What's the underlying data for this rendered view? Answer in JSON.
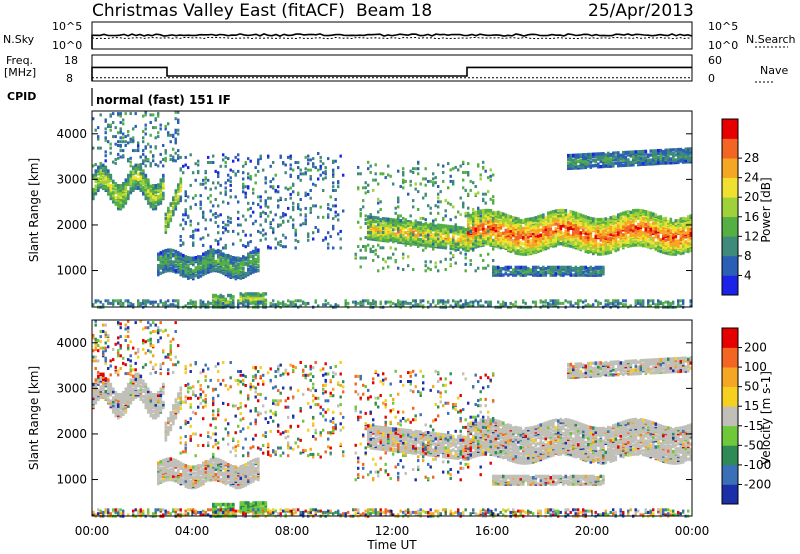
{
  "header": {
    "title": "Christmas Valley East (fitACF)",
    "beam": "Beam 18",
    "date": "25/Apr/2013"
  },
  "chart_data": [
    {
      "type": "line",
      "panel": "noise",
      "left_label": "N.Sky",
      "right_label": "N.Search",
      "left_ticks": [
        "10^5",
        "10^0"
      ],
      "right_ticks": [
        "10^5",
        "10^0"
      ]
    },
    {
      "type": "line",
      "panel": "frequency",
      "left_label_1": "Freq.",
      "left_label_2": "[MHz]",
      "right_label": "Nave",
      "left_ticks": [
        "18",
        "8"
      ],
      "right_ticks": [
        "60",
        "0"
      ],
      "freq_steps": [
        {
          "t0": 0.0,
          "t1": 3.0,
          "freq": 14.8
        },
        {
          "t0": 3.0,
          "t1": 15.0,
          "freq": 10.5
        },
        {
          "t0": 15.0,
          "t1": 24.0,
          "freq": 14.8
        }
      ],
      "nave_level": 8
    },
    {
      "type": "label",
      "panel": "cpid",
      "label": "CPID",
      "text": "normal (fast) 151 IF"
    },
    {
      "type": "heatmap",
      "panel": "power",
      "ylabel": "Slant Range [km]",
      "yticks": [
        1000,
        2000,
        3000,
        4000
      ],
      "ylim": [
        200,
        4500
      ],
      "xlim": [
        0,
        24
      ],
      "colorbar_label": "Power [dB]",
      "colorbar_ticks": [
        4,
        8,
        12,
        16,
        20,
        24,
        28
      ],
      "colorbar_colors": [
        "#1b24e6",
        "#2a5fb5",
        "#3f8a7a",
        "#55b043",
        "#9fd23a",
        "#f0e030",
        "#f5a623",
        "#f26522",
        "#e60000"
      ],
      "features": [
        {
          "kind": "band",
          "t0": 0.0,
          "t1": 2.9,
          "r_center": 2850,
          "width": 260,
          "osc_amp": 230,
          "osc_period": 1.4,
          "level": 0.55
        },
        {
          "kind": "band",
          "t0": 2.9,
          "t1": 3.6,
          "r_center": 2050,
          "width": 200,
          "slope": 900,
          "level": 0.62
        },
        {
          "kind": "band",
          "t0": 2.6,
          "t1": 6.6,
          "r_center": 1150,
          "width": 230,
          "osc_amp": 90,
          "osc_period": 1.8,
          "level": 0.35
        },
        {
          "kind": "band",
          "t0": 4.8,
          "t1": 5.6,
          "r_center": 350,
          "width": 140,
          "level": 0.55
        },
        {
          "kind": "band",
          "t0": 5.9,
          "t1": 6.9,
          "r_center": 400,
          "width": 100,
          "level": 0.6
        },
        {
          "kind": "band",
          "t0": 11.0,
          "t1": 15.0,
          "r_center": 1950,
          "width": 240,
          "slope": -260,
          "level": 0.72
        },
        {
          "kind": "band",
          "t0": 15.0,
          "t1": 24.0,
          "r_center": 1850,
          "width": 380,
          "osc_amp": 100,
          "osc_period": 3.0,
          "level": 0.92
        },
        {
          "kind": "band",
          "t0": 16.0,
          "t1": 20.5,
          "r_center": 1000,
          "width": 90,
          "level": 0.3
        },
        {
          "kind": "band",
          "t0": 19.0,
          "t1": 24.0,
          "r_center": 3400,
          "width": 150,
          "slope": 150,
          "level": 0.3
        },
        {
          "kind": "scatter",
          "t0": 3.5,
          "t1": 10.0,
          "r0": 1500,
          "r1": 3600,
          "density": 0.09,
          "level": 0.12
        },
        {
          "kind": "scatter",
          "t0": 0.0,
          "t1": 3.5,
          "r0": 3300,
          "r1": 4500,
          "density": 0.12,
          "level": 0.15
        },
        {
          "kind": "scatter",
          "t0": 0.0,
          "t1": 24.0,
          "r0": 200,
          "r1": 360,
          "density": 0.35,
          "level": 0.2
        },
        {
          "kind": "scatter",
          "t0": 10.5,
          "t1": 16.0,
          "r0": 1000,
          "r1": 3400,
          "density": 0.07,
          "level": 0.25
        }
      ]
    },
    {
      "type": "heatmap",
      "panel": "velocity",
      "ylabel": "Slant Range [km]",
      "yticks": [
        1000,
        2000,
        3000,
        4000
      ],
      "ylim": [
        200,
        4500
      ],
      "xlim": [
        0,
        24
      ],
      "colorbar_label": "Velocity [m s-1]",
      "colorbar_ticks": [
        "200",
        "100",
        "50",
        "15",
        "-15",
        "-50",
        "-100",
        "-200"
      ],
      "colorbar_colors": [
        "#1b2fa8",
        "#3b6fb6",
        "#2e8b57",
        "#6fc83a",
        "#c0c0b8",
        "#f5d020",
        "#f5a623",
        "#f26522",
        "#e60000"
      ],
      "xlabel": "Time UT",
      "xticks": [
        "00:00",
        "04:00",
        "08:00",
        "12:00",
        "16:00",
        "20:00",
        "00:00"
      ]
    }
  ]
}
